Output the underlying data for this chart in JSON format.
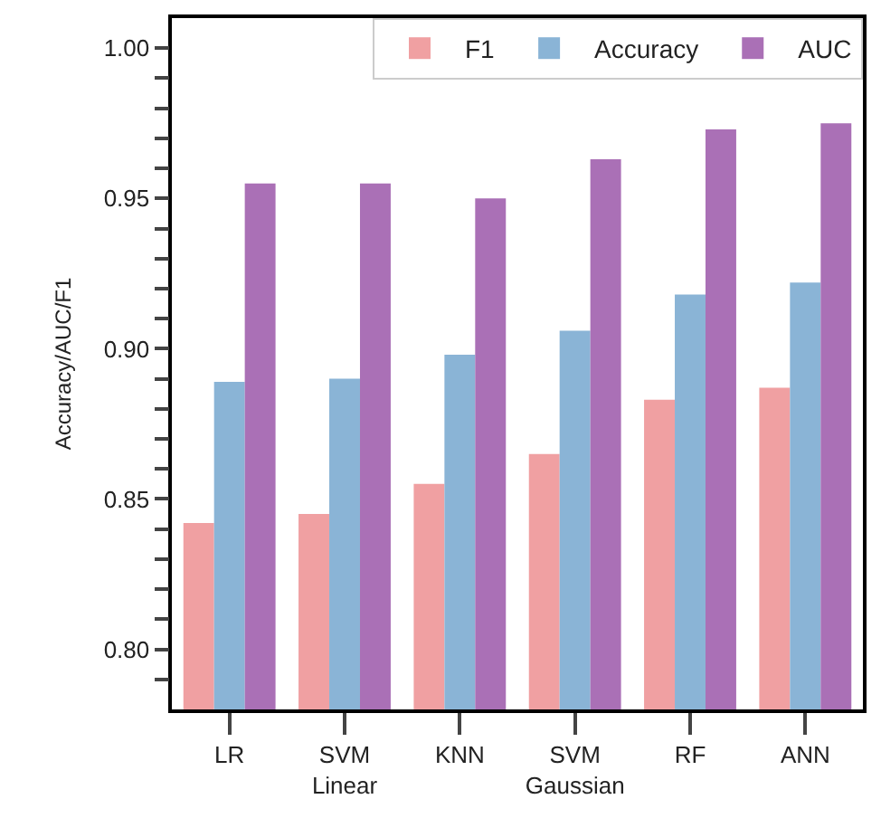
{
  "chart_data": {
    "type": "bar",
    "ylabel": "Accuracy/AUC/F1",
    "categories": [
      "LR",
      "SVM\nLinear",
      "KNN",
      "SVM\nGaussian",
      "RF",
      "ANN"
    ],
    "series": [
      {
        "name": "F1",
        "color": "#f0a0a2",
        "values": [
          0.842,
          0.845,
          0.855,
          0.865,
          0.883,
          0.887
        ]
      },
      {
        "name": "Accuracy",
        "color": "#8ab4d6",
        "values": [
          0.889,
          0.89,
          0.898,
          0.906,
          0.918,
          0.922
        ]
      },
      {
        "name": "AUC",
        "color": "#aa70b6",
        "values": [
          0.955,
          0.955,
          0.95,
          0.963,
          0.973,
          0.975
        ]
      }
    ],
    "ylim": [
      0.78,
      1.01
    ],
    "yticks": [
      {
        "value": 0.79,
        "label": null
      },
      {
        "value": 0.8,
        "label": "0.80"
      },
      {
        "value": 0.81,
        "label": null
      },
      {
        "value": 0.82,
        "label": null
      },
      {
        "value": 0.83,
        "label": null
      },
      {
        "value": 0.84,
        "label": null
      },
      {
        "value": 0.85,
        "label": "0.85"
      },
      {
        "value": 0.86,
        "label": null
      },
      {
        "value": 0.87,
        "label": null
      },
      {
        "value": 0.88,
        "label": null
      },
      {
        "value": 0.89,
        "label": null
      },
      {
        "value": 0.9,
        "label": "0.90"
      },
      {
        "value": 0.91,
        "label": null
      },
      {
        "value": 0.92,
        "label": null
      },
      {
        "value": 0.93,
        "label": null
      },
      {
        "value": 0.94,
        "label": null
      },
      {
        "value": 0.95,
        "label": "0.95"
      },
      {
        "value": 0.96,
        "label": null
      },
      {
        "value": 0.97,
        "label": null
      },
      {
        "value": 0.98,
        "label": null
      },
      {
        "value": 0.99,
        "label": null
      },
      {
        "value": 1.0,
        "label": "1.00"
      }
    ],
    "legend": "top right"
  }
}
